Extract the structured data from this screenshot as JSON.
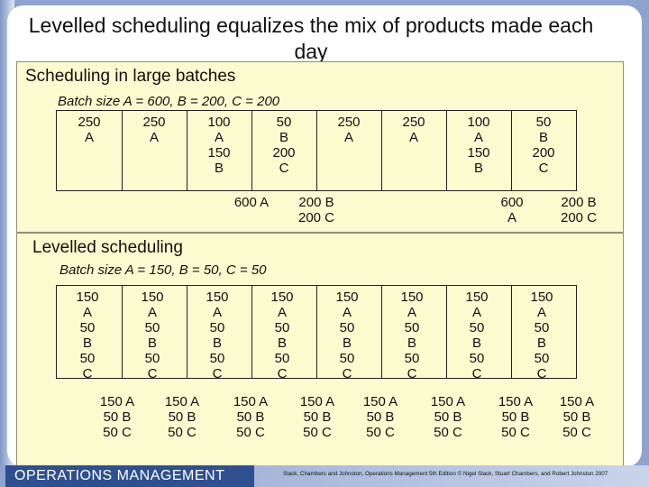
{
  "title": "Levelled scheduling equalizes the mix of products made each day",
  "large": {
    "heading": "Scheduling in large batches",
    "batch_size": "Batch size A = 600, B = 200, C = 200",
    "slots": [
      [
        "250",
        "A"
      ],
      [
        "250",
        "A"
      ],
      [
        "100",
        "A",
        "150",
        "B"
      ],
      [
        "50",
        "B",
        "200",
        "C"
      ],
      [
        "250",
        "A"
      ],
      [
        "250",
        "A"
      ],
      [
        "100",
        "A",
        "150",
        "B"
      ],
      [
        "50",
        "B",
        "200",
        "C"
      ]
    ],
    "cumulative": [
      [
        "600 A"
      ],
      [
        "200 B",
        "200 C"
      ],
      [
        "600",
        "A"
      ],
      [
        "200 B",
        "200 C"
      ]
    ]
  },
  "levelled": {
    "heading": "Levelled scheduling",
    "batch_size": "Batch size A = 150, B = 50, C = 50",
    "slots": [
      [
        "150",
        "A",
        "50",
        "B",
        "50",
        "C"
      ],
      [
        "150",
        "A",
        "50",
        "B",
        "50",
        "C"
      ],
      [
        "150",
        "A",
        "50",
        "B",
        "50",
        "C"
      ],
      [
        "150",
        "A",
        "50",
        "B",
        "50",
        "C"
      ],
      [
        "150",
        "A",
        "50",
        "B",
        "50",
        "C"
      ],
      [
        "150",
        "A",
        "50",
        "B",
        "50",
        "C"
      ],
      [
        "150",
        "A",
        "50",
        "B",
        "50",
        "C"
      ],
      [
        "150",
        "A",
        "50",
        "B",
        "50",
        "C"
      ]
    ],
    "cumulative": [
      [
        "150 A",
        "50 B",
        "50 C"
      ],
      [
        "150 A",
        "50 B",
        "50 C"
      ],
      [
        "150 A",
        "50 B",
        "50 C"
      ],
      [
        "150 A",
        "50 B",
        "50 C"
      ],
      [
        "150 A",
        "50 B",
        "50 C"
      ],
      [
        "150 A",
        "50 B",
        "50 C"
      ],
      [
        "150 A",
        "50 B",
        "50 C"
      ],
      [
        "150 A",
        "50 B",
        "50 C"
      ]
    ]
  },
  "footer": {
    "logo": "OPERATIONS MANAGEMENT",
    "credit": "Slack, Chambers and Johnston, Operations Management 5th Edition © Nigel Slack, Stuart Chambers, and Robert Johnston 2007"
  }
}
